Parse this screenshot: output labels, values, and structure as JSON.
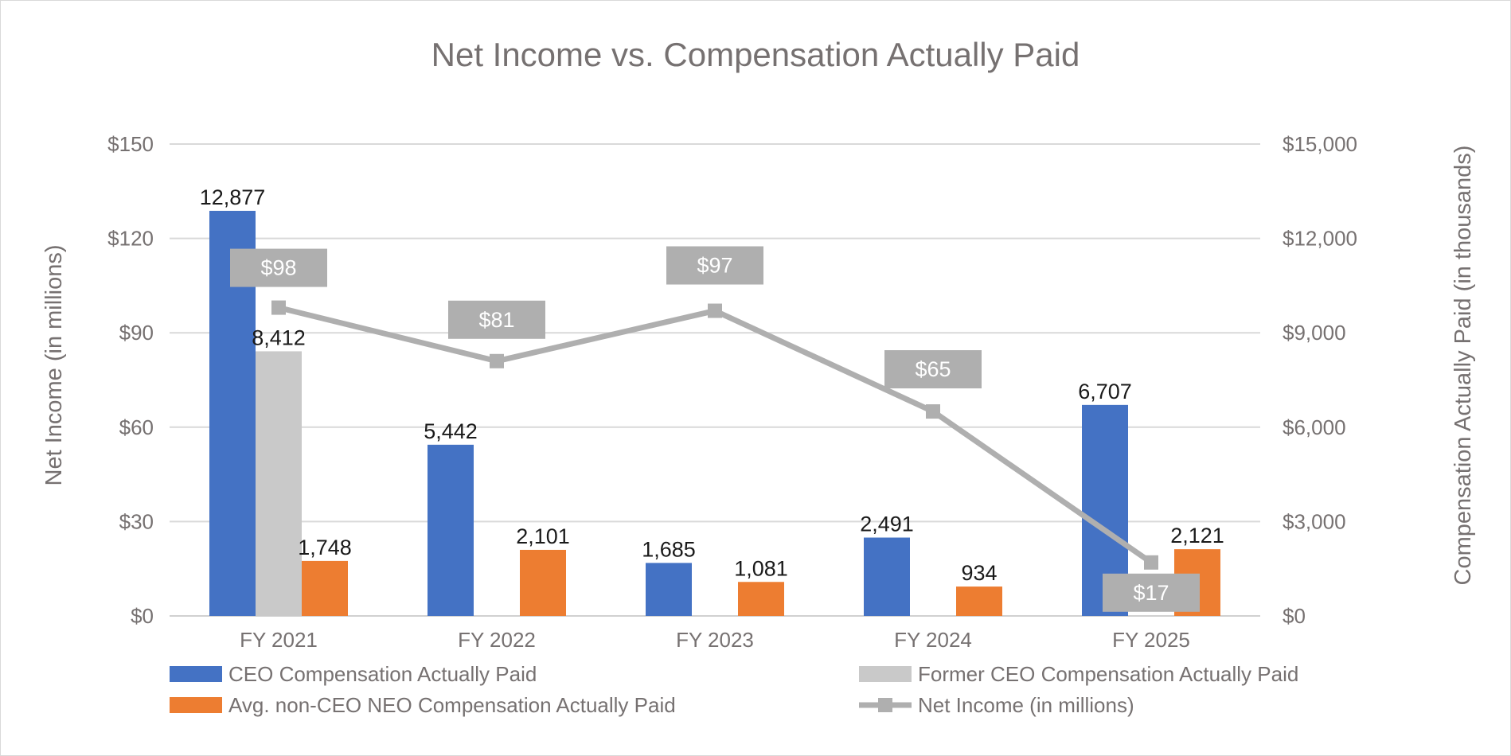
{
  "chart_data": {
    "type": "bar",
    "title": "Net Income vs. Compensation Actually Paid",
    "categories": [
      "FY 2021",
      "FY 2022",
      "FY 2023",
      "FY 2024",
      "FY 2025"
    ],
    "ylabel_left": "Net Income (in millions)",
    "ylabel_right": "Compensation Actually Paid (in thousands)",
    "ylim_left": [
      0,
      150
    ],
    "ylim_right": [
      0,
      15000
    ],
    "yticks_left": [
      "$0",
      "$30",
      "$60",
      "$90",
      "$120",
      "$150"
    ],
    "yticks_right": [
      "$0",
      "$3,000",
      "$6,000",
      "$9,000",
      "$12,000",
      "$15,000"
    ],
    "grid": true,
    "legend_position": "bottom",
    "series": [
      {
        "name": "CEO Compensation Actually Paid",
        "type": "bar",
        "axis": "right",
        "color": "#4472C4",
        "values": [
          12877,
          5442,
          1685,
          2491,
          6707
        ],
        "labels": [
          "12,877",
          "5,442",
          "1,685",
          "2,491",
          "6,707"
        ]
      },
      {
        "name": "Former CEO Compensation Actually Paid",
        "type": "bar",
        "axis": "right",
        "color": "#C9C9C9",
        "values": [
          8412,
          null,
          null,
          null,
          null
        ],
        "labels": [
          "8,412",
          "",
          "",
          "",
          ""
        ]
      },
      {
        "name": "Avg. non-CEO NEO Compensation Actually Paid",
        "type": "bar",
        "axis": "right",
        "color": "#ED7D31",
        "values": [
          1748,
          2101,
          1081,
          934,
          2121
        ],
        "labels": [
          "1,748",
          "2,101",
          "1,081",
          "934",
          "2,121"
        ]
      },
      {
        "name": "Net Income (in millions)",
        "type": "line",
        "axis": "left",
        "color": "#AFAFAF",
        "values": [
          98,
          81,
          97,
          65,
          17
        ],
        "labels": [
          "$98",
          "$81",
          "$97",
          "$65",
          "$17"
        ]
      }
    ]
  }
}
